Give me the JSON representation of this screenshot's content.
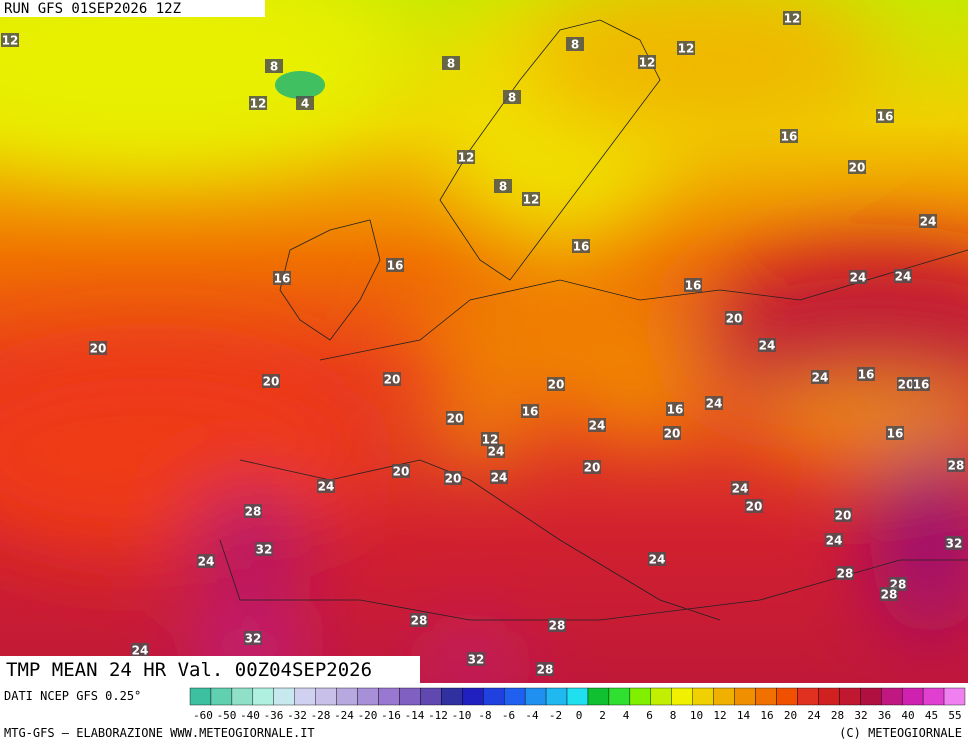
{
  "header": {
    "run": "RUN GFS 01SEP2026 12Z"
  },
  "map": {
    "labels": [
      12,
      12,
      8,
      12,
      12,
      8,
      8,
      12,
      4,
      8,
      16,
      16,
      12,
      20,
      8,
      12,
      24,
      16,
      16,
      16,
      24,
      24,
      16,
      20,
      20,
      24,
      24,
      16,
      20,
      16,
      20,
      20,
      20,
      16,
      24,
      20,
      16,
      24,
      20,
      12,
      24,
      16,
      28,
      20,
      20,
      20,
      24,
      24,
      24,
      20,
      28,
      20,
      24,
      32,
      32,
      24,
      24,
      28,
      28,
      28,
      28,
      28,
      32,
      24,
      32,
      28
    ]
  },
  "footer": {
    "title": "TMP MEAN 24 HR Val. 00Z04SEP2026",
    "source": "DATI NCEP GFS 0.25°",
    "credit": "MTG-GFS — ELABORAZIONE WWW.METEOGIORNALE.IT",
    "copyright": "(C) METEOGIORNALE"
  },
  "colorbar": {
    "labels": [
      "-60",
      "-50",
      "-40",
      "-36",
      "-32",
      "-28",
      "-24",
      "-20",
      "-16",
      "-14",
      "-12",
      "-10",
      "-8",
      "-6",
      "-4",
      "-2",
      "0",
      "2",
      "4",
      "6",
      "8",
      "10",
      "12",
      "14",
      "16",
      "20",
      "24",
      "28",
      "32",
      "36",
      "40",
      "45",
      "55"
    ],
    "colors": [
      "#3cc0a0",
      "#60d0b0",
      "#90e0c8",
      "#b0f0e0",
      "#c8e8f0",
      "#d0d0f0",
      "#c8c0e8",
      "#b8a8e0",
      "#a890d8",
      "#9878d0",
      "#8060c0",
      "#6048b0",
      "#3030a0",
      "#2020c0",
      "#2040e0",
      "#2060f0",
      "#2090f0",
      "#20b8f0",
      "#20e0f0",
      "#10c030",
      "#30e030",
      "#80f000",
      "#c0f000",
      "#f0f000",
      "#f0d000",
      "#f0b000",
      "#f09000",
      "#f07000",
      "#f05000",
      "#e03020",
      "#d02020",
      "#c01830",
      "#b01040",
      "#c01880",
      "#d020b0",
      "#e040d0",
      "#f080f0"
    ]
  }
}
